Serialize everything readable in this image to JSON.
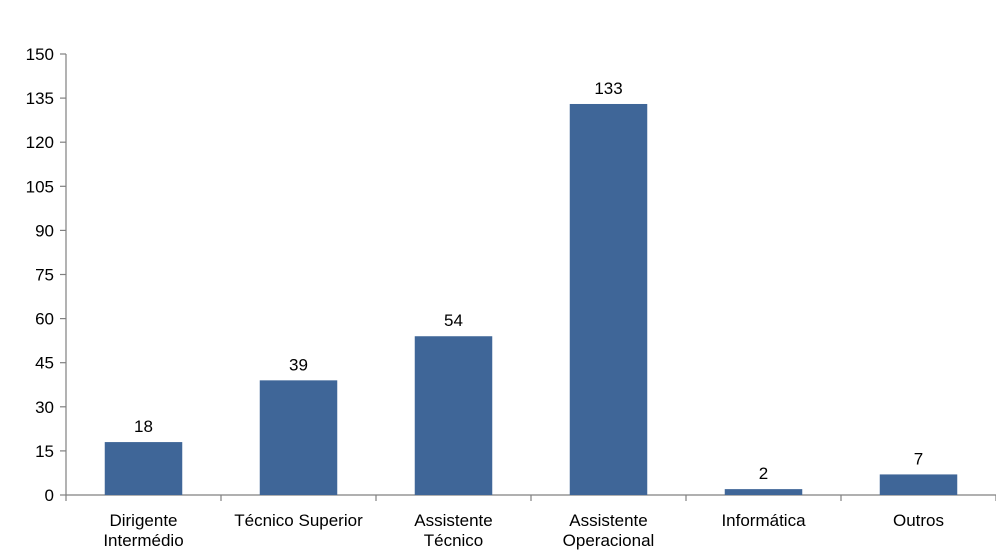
{
  "chart_data": {
    "type": "bar",
    "categories": [
      [
        "Dirigente",
        "Intermédio"
      ],
      [
        "Técnico Superior"
      ],
      [
        "Assistente",
        "Técnico"
      ],
      [
        "Assistente",
        "Operacional"
      ],
      [
        "Informática"
      ],
      [
        "Outros"
      ]
    ],
    "values": [
      18,
      39,
      54,
      133,
      2,
      7
    ],
    "data_labels": [
      "18",
      "39",
      "54",
      "133",
      "2",
      "7"
    ],
    "ylim": [
      0,
      150
    ],
    "yticks": [
      0,
      15,
      30,
      45,
      60,
      75,
      90,
      105,
      120,
      135,
      150
    ],
    "title": "",
    "xlabel": "",
    "ylabel": "",
    "grid": false,
    "bar_color": "#3f6698",
    "axis_color": "#808080"
  }
}
